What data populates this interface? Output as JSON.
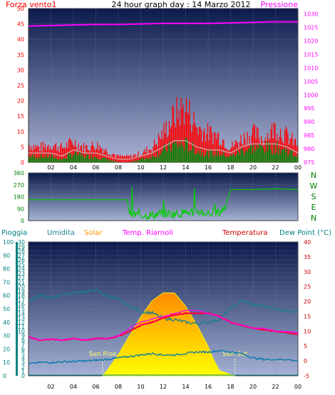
{
  "header": {
    "left_label": "Forza vento1",
    "title": "24 hour graph day : 14 Marzo 2012",
    "right_label": "Pressione"
  },
  "colors": {
    "wind": "#ff0000",
    "gust": "#008000",
    "pressure": "#ff00ff",
    "direction": "#00cc00",
    "humidity": "#1a7f8e",
    "solar": "#ff9900",
    "temp": "#ff0040",
    "feels": "#ff00ff",
    "dewpoint": "#0077aa",
    "rain": "#008080"
  },
  "chart_data": [
    {
      "type": "line",
      "title": "24 hour graph day : 14 Marzo 2012",
      "x_ticks": [
        "02",
        "04",
        "06",
        "08",
        "10",
        "12",
        "14",
        "16",
        "18",
        "20",
        "22",
        "00"
      ],
      "x_range": [
        0,
        24
      ],
      "y_left_label": "Forza vento1",
      "y_left_ticks": [
        "0",
        "5",
        "10",
        "15",
        "20",
        "25",
        "30",
        "35",
        "40",
        "45",
        "50"
      ],
      "y_left_range": [
        0,
        50
      ],
      "y_right_label": "Pressione",
      "y_right_ticks": [
        "975",
        "980",
        "985",
        "990",
        "995",
        "1000",
        "1005",
        "1010",
        "1015",
        "1020",
        "1025",
        "1030"
      ],
      "y_right_range": [
        975,
        1032
      ],
      "series": [
        {
          "name": "Pressione",
          "axis": "right",
          "x": [
            0,
            2,
            4,
            6,
            8,
            10,
            12,
            14,
            16,
            18,
            20,
            22,
            24
          ],
          "y": [
            1025.5,
            1025.7,
            1025.9,
            1026.1,
            1026.1,
            1026.3,
            1026.5,
            1026.5,
            1026.5,
            1026.7,
            1026.9,
            1027.1,
            1027.1
          ]
        },
        {
          "name": "wind_max",
          "axis": "left",
          "x": [
            0,
            1,
            2,
            3,
            4,
            5,
            6,
            7,
            8,
            9,
            10,
            11,
            12,
            13,
            14,
            15,
            16,
            17,
            18,
            19,
            20,
            21,
            22,
            23,
            24
          ],
          "y": [
            6,
            5,
            6,
            5,
            7,
            5,
            6,
            4,
            2,
            2,
            3,
            5,
            10,
            16,
            19,
            12,
            10,
            9,
            5,
            8,
            10,
            8,
            12,
            9,
            6
          ]
        },
        {
          "name": "wind_avg",
          "axis": "left",
          "x": [
            0,
            1,
            2,
            3,
            4,
            5,
            6,
            7,
            8,
            9,
            10,
            11,
            12,
            13,
            14,
            15,
            16,
            17,
            18,
            19,
            20,
            21,
            22,
            23,
            24
          ],
          "y": [
            2,
            2,
            2,
            1,
            3,
            2,
            2,
            1,
            0,
            0,
            1,
            2,
            4,
            6,
            6,
            4,
            3,
            3,
            2,
            4,
            5,
            5,
            5,
            4,
            2
          ]
        }
      ]
    },
    {
      "type": "line",
      "y_right_ticks": [
        "N",
        "W",
        "S",
        "E",
        "N"
      ],
      "y_left_ticks": [
        "0",
        "90",
        "180",
        "270",
        "360"
      ],
      "y_range": [
        0,
        360
      ],
      "x_range": [
        0,
        24
      ],
      "series": [
        {
          "name": "direzione",
          "x": [
            0,
            8.8,
            9.0,
            11.0,
            12.0,
            13.0,
            14.0,
            15.0,
            16.0,
            17.0,
            17.5,
            18.0,
            20.0,
            22.0,
            24.0
          ],
          "y": [
            158,
            158,
            45,
            40,
            55,
            50,
            60,
            70,
            55,
            60,
            100,
            235,
            235,
            240,
            235
          ]
        }
      ]
    },
    {
      "type": "line",
      "x_ticks": [
        "02",
        "04",
        "06",
        "08",
        "10",
        "12",
        "14",
        "16",
        "18",
        "20",
        "22",
        "00"
      ],
      "x_range": [
        0,
        24
      ],
      "y_left_ticks": [
        "0",
        "10",
        "20",
        "30",
        "40",
        "50",
        "60",
        "70",
        "80",
        "90",
        "100"
      ],
      "y_left_range": [
        0,
        100
      ],
      "y_rain_ticks": [
        "0",
        "1",
        "2",
        "3",
        "4",
        "5",
        "6",
        "7",
        "8",
        "9",
        "10",
        "11",
        "12",
        "13",
        "14",
        "15",
        "16",
        "17",
        "18",
        "19",
        "20",
        "21",
        "22",
        "23",
        "24",
        "25",
        "26",
        "27",
        "28",
        "29",
        "30"
      ],
      "y_rain_range": [
        0,
        30
      ],
      "y_right_ticks": [
        "-5",
        "0",
        "5",
        "10",
        "15",
        "20",
        "25",
        "30",
        "35",
        "40"
      ],
      "y_right_range": [
        -5,
        40
      ],
      "legend": [
        "Pioggia",
        "Umidita",
        "Solar",
        "Temp. Riarnoli",
        "Temperatura",
        "Dew Point (°C)"
      ],
      "annotations": [
        "Sun Rise",
        "Sun Set"
      ],
      "sunrise": 6.6,
      "sunset": 18.4,
      "series": [
        {
          "name": "Umidita",
          "axis": "left",
          "x": [
            0,
            1,
            2,
            3,
            4,
            5,
            6,
            7,
            8,
            9,
            10,
            11,
            12,
            13,
            14,
            15,
            16,
            17,
            18,
            19,
            20,
            21,
            22,
            23,
            24
          ],
          "y": [
            56,
            60,
            58,
            61,
            62,
            63,
            64,
            60,
            57,
            52,
            48,
            47,
            43,
            42,
            40,
            39,
            40,
            42,
            50,
            56,
            53,
            52,
            50,
            49,
            48
          ]
        },
        {
          "name": "Solar",
          "axis": "left",
          "x": [
            6.6,
            7,
            8,
            9,
            10,
            11,
            12,
            13,
            14,
            15,
            16,
            16.5,
            17,
            18,
            18.4
          ],
          "y": [
            0,
            4,
            16,
            30,
            44,
            56,
            62,
            62,
            52,
            38,
            22,
            12,
            4,
            1,
            0
          ]
        },
        {
          "name": "Temp. Riarnoli",
          "axis": "right",
          "x": [
            0,
            1,
            2,
            3,
            4,
            5,
            6,
            7,
            8,
            9,
            10,
            11,
            12,
            13,
            14,
            15,
            16,
            17,
            18,
            19,
            20,
            21,
            22,
            23,
            24
          ],
          "y": [
            8,
            7,
            7.3,
            7,
            7.6,
            7,
            7.6,
            7.5,
            8.5,
            11,
            13,
            14,
            15,
            16,
            17,
            17,
            16,
            15,
            13,
            12,
            11,
            11,
            10,
            10,
            9.5
          ]
        },
        {
          "name": "Temperatura",
          "axis": "right",
          "x": [
            0,
            1,
            2,
            3,
            4,
            5,
            6,
            7,
            8,
            9,
            10,
            11,
            12,
            13,
            14,
            15,
            16,
            17,
            18,
            19,
            20,
            21,
            22,
            23,
            24
          ],
          "y": [
            8,
            7,
            7.3,
            7,
            7.5,
            7,
            7.5,
            7.5,
            8.3,
            10,
            12,
            13,
            14.5,
            15.5,
            16,
            16,
            16,
            15,
            13,
            12,
            11,
            10.5,
            10,
            9.5,
            9
          ]
        },
        {
          "name": "Dew Point (°C)",
          "axis": "right",
          "x": [
            0,
            1,
            2,
            3,
            4,
            5,
            6,
            7,
            8,
            9,
            10,
            11,
            12,
            13,
            14,
            15,
            16,
            17,
            18,
            19,
            20,
            21,
            22,
            23,
            24
          ],
          "y": [
            -1,
            -0.5,
            -0.5,
            -0.3,
            -0.2,
            0,
            0.2,
            0.5,
            1,
            1.5,
            2,
            2.5,
            2,
            2,
            2.5,
            3,
            3,
            3.5,
            3,
            2.5,
            1,
            0.5,
            0.5,
            0.5,
            0
          ]
        },
        {
          "name": "Pioggia",
          "axis": "rain",
          "x": [
            0,
            24
          ],
          "y": [
            0,
            0
          ]
        }
      ]
    }
  ]
}
